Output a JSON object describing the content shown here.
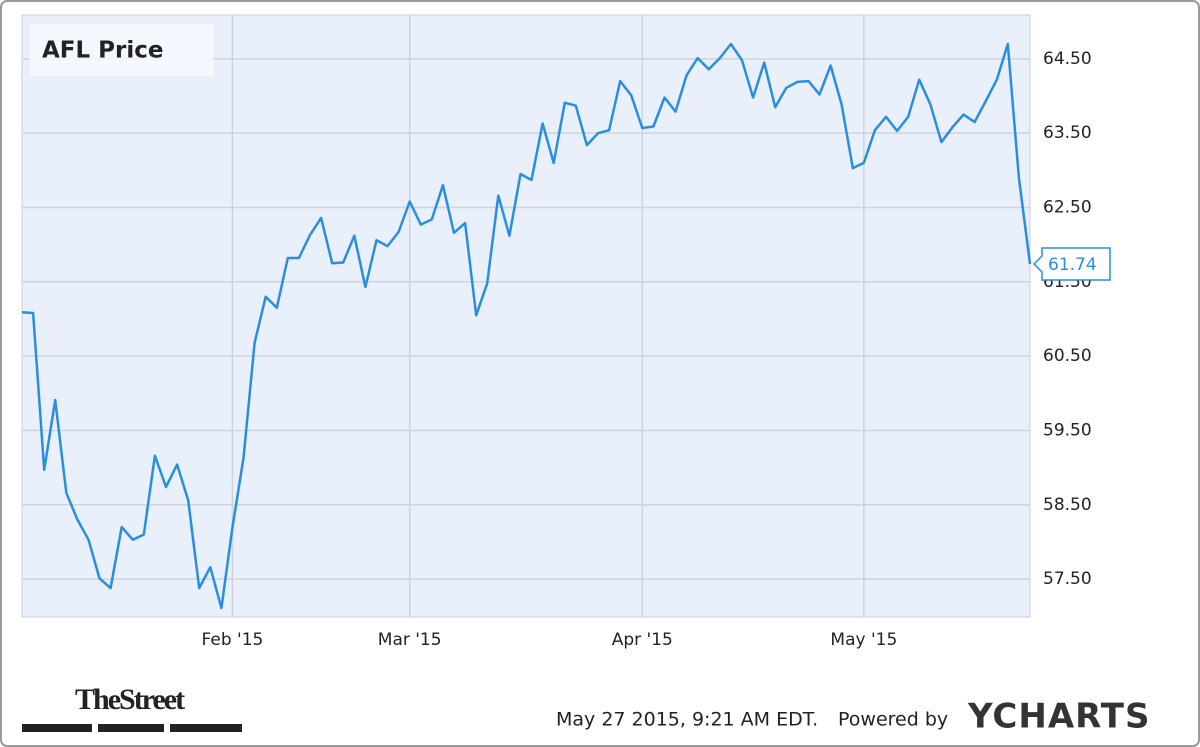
{
  "chart_data": {
    "type": "line",
    "title": "AFL Price",
    "categories": [
      null,
      null,
      null,
      null,
      null,
      null,
      null,
      null,
      null,
      null,
      null,
      null,
      null,
      null,
      null,
      null,
      null,
      null,
      null,
      "Feb '15",
      null,
      null,
      null,
      null,
      null,
      null,
      null,
      null,
      null,
      null,
      null,
      null,
      null,
      null,
      null,
      "Mar '15",
      null,
      null,
      null,
      null,
      null,
      null,
      null,
      null,
      null,
      null,
      null,
      null,
      null,
      null,
      null,
      null,
      null,
      null,
      null,
      null,
      "Apr '15",
      null,
      null,
      null,
      null,
      null,
      null,
      null,
      null,
      null,
      null,
      null,
      null,
      null,
      null,
      null,
      null,
      null,
      null,
      null,
      "May '15",
      null,
      null,
      null,
      null,
      null,
      null,
      null,
      null,
      null,
      null,
      null,
      null,
      null,
      null,
      null
    ],
    "values": [
      61.09,
      61.08,
      58.97,
      59.91,
      58.66,
      58.3,
      58.03,
      57.51,
      57.38,
      58.2,
      58.03,
      58.1,
      59.16,
      58.74,
      59.04,
      58.56,
      57.38,
      57.66,
      57.11,
      58.2,
      59.13,
      60.68,
      61.3,
      61.15,
      61.82,
      61.82,
      62.13,
      62.36,
      61.75,
      61.76,
      62.12,
      61.43,
      62.06,
      61.98,
      62.17,
      62.58,
      62.27,
      62.34,
      62.8,
      62.16,
      62.29,
      61.05,
      61.48,
      62.66,
      62.12,
      62.95,
      62.87,
      63.63,
      63.1,
      63.91,
      63.87,
      63.34,
      63.5,
      63.54,
      64.2,
      64.01,
      63.57,
      63.59,
      63.98,
      63.79,
      64.28,
      64.51,
      64.36,
      64.51,
      64.7,
      64.48,
      63.98,
      64.45,
      63.85,
      64.11,
      64.19,
      64.2,
      64.02,
      64.41,
      63.88,
      63.03,
      63.1,
      63.54,
      63.72,
      63.53,
      63.72,
      64.22,
      63.89,
      63.38,
      63.58,
      63.75,
      63.65,
      63.93,
      64.22,
      64.7,
      62.9,
      61.74
    ],
    "color": "#2a8ee0",
    "ylim": [
      56.99,
      65.09
    ],
    "yticks": [
      {
        "value": 57.5,
        "label": "57.50"
      },
      {
        "value": 58.5,
        "label": "58.50"
      },
      {
        "value": 59.5,
        "label": "59.50"
      },
      {
        "value": 60.5,
        "label": "60.50"
      },
      {
        "value": 61.5,
        "label": "61.50"
      },
      {
        "value": 62.5,
        "label": "62.50"
      },
      {
        "value": 63.5,
        "label": "63.50"
      },
      {
        "value": 64.5,
        "label": "64.50"
      }
    ],
    "grid": true,
    "publisher": "TheStreet",
    "timestamp": "May 27 2015, 9:21 AM EDT.",
    "powered_by": "Powered by",
    "brand": "YCHARTS"
  }
}
